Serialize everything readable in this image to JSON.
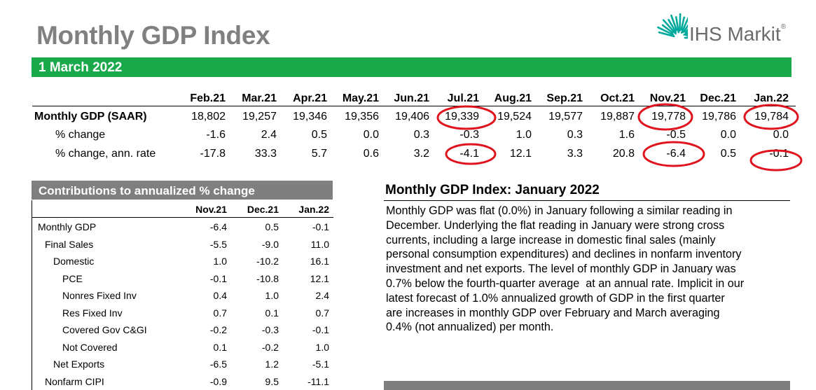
{
  "header": {
    "title": "Monthly GDP Index",
    "date": "1 March 2022",
    "logo_text": "IHS Markit",
    "logo_mark": "®"
  },
  "main_table": {
    "months": [
      "Feb.21",
      "Mar.21",
      "Apr.21",
      "May.21",
      "Jun.21",
      "Jul.21",
      "Aug.21",
      "Sep.21",
      "Oct.21",
      "Nov.21",
      "Dec.21",
      "Jan.22"
    ],
    "rows": [
      {
        "label": "Monthly GDP (SAAR)",
        "values": [
          "18,802",
          "19,257",
          "19,346",
          "19,356",
          "19,406",
          "19,339",
          "19,524",
          "19,577",
          "19,887",
          "19,778",
          "19,786",
          "19,784"
        ]
      },
      {
        "label": "% change",
        "values": [
          "-1.6",
          "2.4",
          "0.5",
          "0.0",
          "0.3",
          "-0.3",
          "1.0",
          "0.3",
          "1.6",
          "-0.5",
          "0.0",
          "0.0"
        ]
      },
      {
        "label": "% change, ann. rate",
        "values": [
          "-17.8",
          "33.3",
          "5.7",
          "0.6",
          "3.2",
          "-4.1",
          "12.1",
          "3.3",
          "20.8",
          "-6.4",
          "0.5",
          "-0.1"
        ]
      }
    ]
  },
  "contributions": {
    "title": "Contributions to annualized % change",
    "columns": [
      "Nov.21",
      "Dec.21",
      "Jan.22"
    ],
    "rows": [
      {
        "label": "Monthly GDP",
        "values": [
          "-6.4",
          "0.5",
          "-0.1"
        ]
      },
      {
        "label": "Final Sales",
        "values": [
          "-5.5",
          "-9.0",
          "11.0"
        ]
      },
      {
        "label": "Domestic",
        "values": [
          "1.0",
          "-10.2",
          "16.1"
        ]
      },
      {
        "label": "PCE",
        "values": [
          "-0.1",
          "-10.8",
          "12.1"
        ]
      },
      {
        "label": "Nonres Fixed Inv",
        "values": [
          "0.4",
          "1.0",
          "2.4"
        ]
      },
      {
        "label": "Res Fixed Inv",
        "values": [
          "0.7",
          "0.1",
          "0.7"
        ]
      },
      {
        "label": "Covered Gov C&GI",
        "values": [
          "-0.2",
          "-0.3",
          "-0.1"
        ]
      },
      {
        "label": "Not Covered",
        "values": [
          "0.1",
          "-0.2",
          "1.0"
        ]
      },
      {
        "label": "Net Exports",
        "values": [
          "-6.5",
          "1.2",
          "-5.1"
        ]
      },
      {
        "label": "Nonfarm CIPI",
        "values": [
          "-0.9",
          "9.5",
          "-11.1"
        ]
      }
    ]
  },
  "summary": {
    "title": "Monthly GDP Index: January 2022",
    "lines": [
      "Monthly GDP was flat (0.0%) in January following a similar reading in",
      "December. Underlying the flat reading in January were strong cross",
      "currents, including a large increase in domestic final sales (mainly",
      "personal consumption expenditures) and declines in nonfarm inventory",
      "investment and net exports. The level of monthly GDP in January was",
      "0.7% below the fourth-quarter average  at an annual rate. Implicit in our",
      "latest forecast of 1.0% annualized growth of GDP in the first quarter",
      "are increases in monthly GDP over February and March averaging",
      "0.4% (not annualized) per month."
    ]
  },
  "colors": {
    "title_gray": "#808080",
    "date_bar_green": "#1aa94a",
    "header_gray": "#7f7f7f",
    "annotation_red": "#e0141e",
    "logo_teal": "#00a99d"
  },
  "icons": [
    "ihs-markit-logo-icon"
  ],
  "annotations": {
    "circled_values": [
      "19,339",
      "19,778",
      "19,784",
      "-4.1",
      "-6.4",
      "-0.1"
    ]
  }
}
